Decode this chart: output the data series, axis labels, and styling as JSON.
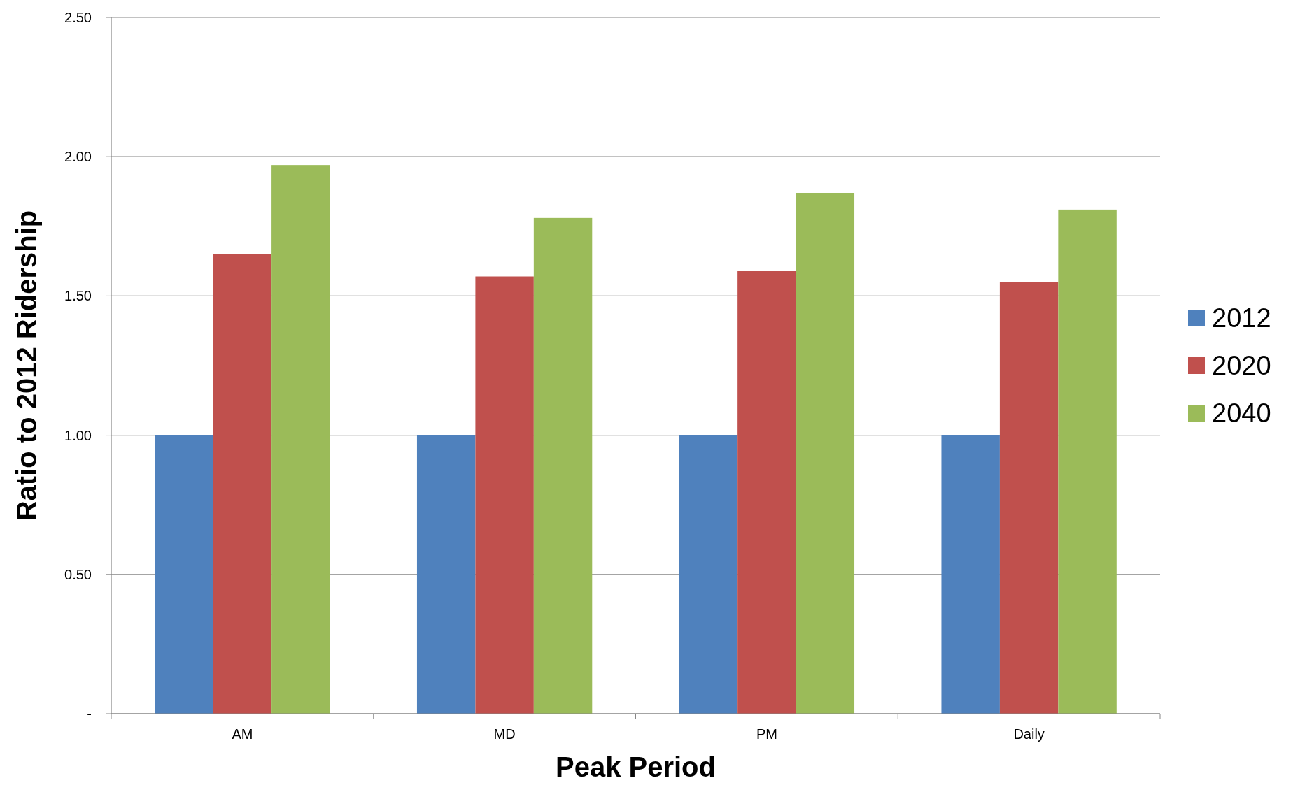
{
  "chart_data": {
    "type": "bar",
    "xlabel": "Peak Period",
    "ylabel": "Ratio to 2012 Ridership",
    "categories": [
      "AM",
      "MD",
      "PM",
      "Daily"
    ],
    "series": [
      {
        "name": "2012",
        "color": "#4f81bd",
        "values": [
          1.0,
          1.0,
          1.0,
          1.0
        ]
      },
      {
        "name": "2020",
        "color": "#c0504d",
        "values": [
          1.65,
          1.57,
          1.59,
          1.55
        ]
      },
      {
        "name": "2040",
        "color": "#9bbb59",
        "values": [
          1.97,
          1.78,
          1.87,
          1.81
        ]
      }
    ],
    "ylim": [
      0,
      2.5
    ],
    "yticks": [
      {
        "value": 0,
        "label": "-"
      },
      {
        "value": 0.5,
        "label": "0.50"
      },
      {
        "value": 1,
        "label": "1.00"
      },
      {
        "value": 1.5,
        "label": "1.50"
      },
      {
        "value": 2,
        "label": "2.00"
      },
      {
        "value": 2.5,
        "label": "2.50"
      }
    ],
    "grid": "y",
    "legend": "right"
  }
}
